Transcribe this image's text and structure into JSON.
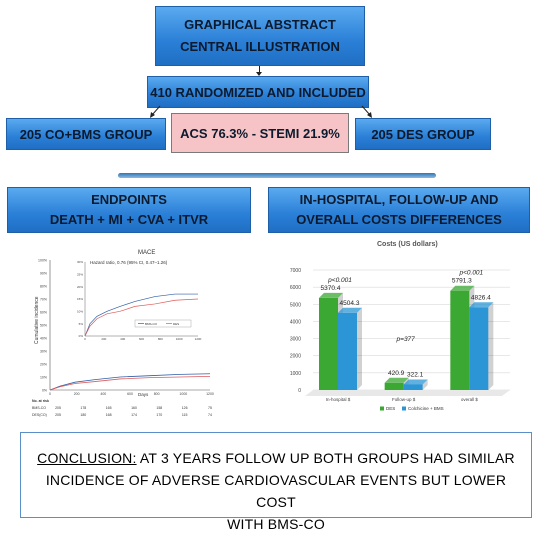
{
  "header": {
    "line1": "GRAPHICAL ABSTRACT",
    "line2": "CENTRAL ILLUSTRATION"
  },
  "randomized": "410 RANDOMIZED AND INCLUDED",
  "group_left": "205 CO+BMS GROUP",
  "group_right": "205 DES GROUP",
  "acs_box": "ACS 76.3% - STEMI 21.9%",
  "endpoints": {
    "line1": "ENDPOINTS",
    "line2": "DEATH + MI + CVA + ITVR"
  },
  "costs_box": {
    "line1": "IN-HOSPITAL, FOLLOW-UP AND",
    "line2": "OVERALL COSTS DIFFERENCES"
  },
  "km_chart": {
    "title": "MACE",
    "hazard": "Hazard ratio, 0.76 (95% CI, 0.47–1.26)",
    "ylabel": "Cumulative incidence",
    "xlabel": "Days",
    "y_ticks": [
      "0%",
      "10%",
      "20%",
      "30%",
      "40%",
      "50%",
      "60%",
      "70%",
      "80%",
      "90%",
      "100%"
    ],
    "x_ticks": [
      "0",
      "200",
      "400",
      "600",
      "800",
      "1000",
      "1200"
    ],
    "inset_y_ticks": [
      "0%",
      "5%",
      "10%",
      "15%",
      "20%",
      "25%",
      "30%"
    ],
    "inset_x_ticks": [
      "0",
      "200",
      "400",
      "600",
      "800",
      "1000",
      "1200"
    ],
    "legend": [
      "BMS-CO",
      "DES"
    ],
    "risk_header": "No. at risk",
    "risk_rows": [
      {
        "label": "BMS-CO",
        "values": [
          "205",
          "178",
          "165",
          "160",
          "158",
          "126",
          "75"
        ]
      },
      {
        "label": "DES(CO)",
        "values": [
          "205",
          "180",
          "168",
          "174",
          "170",
          "115",
          "74"
        ]
      }
    ],
    "colors": {
      "bms": "#2f5fa8",
      "des": "#e05a5a"
    }
  },
  "chart_data": {
    "type": "bar",
    "title": "Costs (US dollars)",
    "categories": [
      "In-hospital $",
      "Follow-up $",
      "overall $"
    ],
    "series": [
      {
        "name": "DES",
        "values": [
          5370.4,
          420.9,
          5791.3
        ]
      },
      {
        "name": "Colchicine + BMS",
        "values": [
          4504.3,
          322.1,
          4826.4
        ]
      }
    ],
    "p_values": [
      "p<0.001",
      "p=377",
      "p<0.001"
    ],
    "y_ticks": [
      "0",
      "1000",
      "2000",
      "3000",
      "4000",
      "5000",
      "6000",
      "7000"
    ],
    "ylim": [
      0,
      7000
    ],
    "legend_position": "bottom",
    "colors": {
      "DES": "#3aa832",
      "Colchicine + BMS": "#2b95d6"
    }
  },
  "conclusion": {
    "label": "CONCLUSION:",
    "line1": " AT 3 YEARS FOLLOW UP BOTH GROUPS HAD SIMILAR",
    "line2": "INCIDENCE OF ADVERSE CARDIOVASCULAR EVENTS BUT LOWER COST",
    "line3": "WITH BMS-CO"
  }
}
